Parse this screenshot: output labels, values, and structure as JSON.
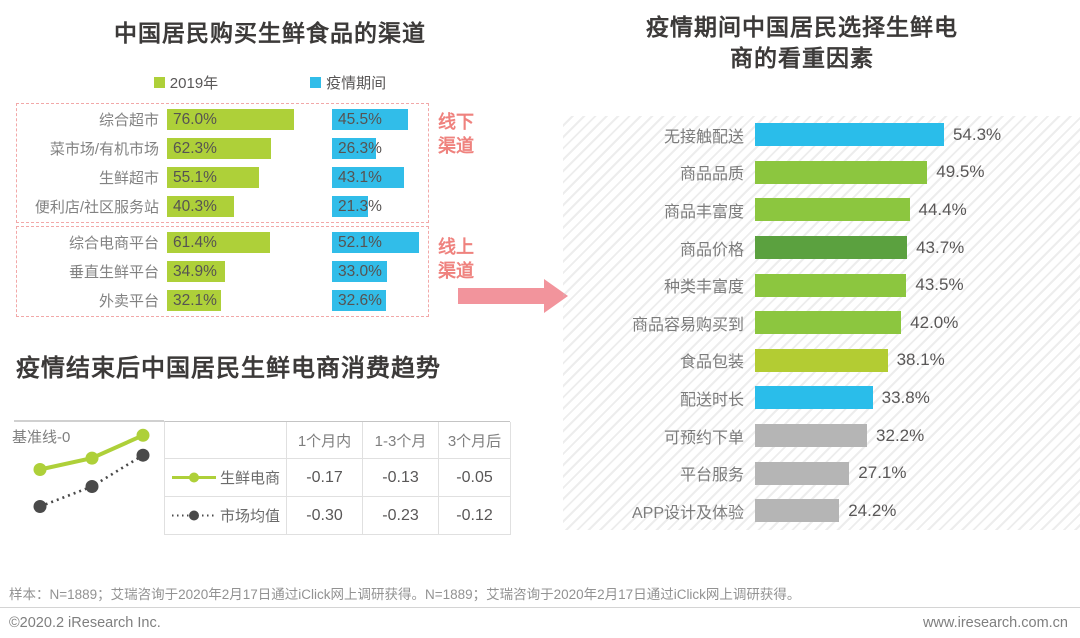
{
  "chart_data": [
    {
      "type": "bar",
      "orientation": "horizontal",
      "title": "中国居民购买生鲜食品的渠道",
      "unit": "%",
      "series_names": [
        "2019年",
        "疫情期间"
      ],
      "series_colors": [
        "#aed039",
        "#31bde9"
      ],
      "groups": [
        {
          "label": "线下渠道",
          "categories": [
            "综合超市",
            "菜市场/有机市场",
            "生鲜超市",
            "便利店/社区服务站"
          ],
          "series": [
            [
              76.0,
              62.3,
              55.1,
              40.3
            ],
            [
              45.5,
              26.3,
              43.1,
              21.3
            ]
          ]
        },
        {
          "label": "线上渠道",
          "categories": [
            "综合电商平台",
            "垂直生鲜平台",
            "外卖平台"
          ],
          "series": [
            [
              61.4,
              34.9,
              32.1
            ],
            [
              52.1,
              33.0,
              32.6
            ]
          ]
        }
      ]
    },
    {
      "type": "bar",
      "orientation": "horizontal",
      "title": "疫情期间中国居民选择生鲜电商的看重因素",
      "unit": "%",
      "xlim": [
        0,
        60
      ],
      "categories": [
        "无接触配送",
        "商品品质",
        "商品丰富度",
        "商品价格",
        "种类丰富度",
        "商品容易购买到",
        "食品包装",
        "配送时长",
        "可预约下单",
        "平台服务",
        "APP设计及体验"
      ],
      "values": [
        54.3,
        49.5,
        44.4,
        43.7,
        43.5,
        42.0,
        38.1,
        33.8,
        32.2,
        27.1,
        24.2
      ],
      "bar_colors": [
        "#2abdea",
        "#8cc63f",
        "#8cc63f",
        "#5ba13f",
        "#8cc63f",
        "#8cc63f",
        "#b3cc33",
        "#2abdea",
        "#b5b5b5",
        "#b5b5b5",
        "#b5b5b5"
      ]
    },
    {
      "type": "line",
      "title": "疫情结束后中国居民生鲜电商消费趋势",
      "baseline_label": "基准线-0",
      "baseline": 0,
      "x": [
        "1个月内",
        "1-3个月",
        "3个月后"
      ],
      "series": [
        {
          "name": "生鲜电商",
          "values": [
            -0.17,
            -0.13,
            -0.05
          ],
          "color": "#aed039",
          "style": "solid"
        },
        {
          "name": "市场均值",
          "values": [
            -0.3,
            -0.23,
            -0.12
          ],
          "color": "#4a4a4a",
          "style": "dotted"
        }
      ]
    }
  ],
  "left_section": {
    "offline_label": "线下渠道",
    "online_label": "线上渠道"
  },
  "colors": {
    "channel_group_label": "#ef827e",
    "arrow": "#f2949c",
    "dashed_box": "#f2a8a8",
    "title_text": "#3c3a39",
    "value_text": "#595757",
    "axis_label_text": "#7c7c7c"
  },
  "footer": {
    "sample_note": "样本：N=1889；艾瑞咨询于2020年2月17日通过iClick网上调研获得。N=1889；艾瑞咨询于2020年2月17日通过iClick网上调研获得。",
    "copyright": "©2020.2 iResearch Inc.",
    "website": "www.iresearch.com.cn"
  }
}
